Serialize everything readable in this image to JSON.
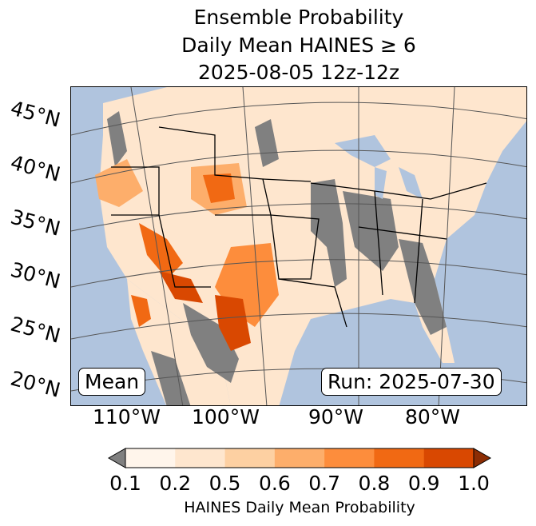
{
  "title": {
    "line1": "Ensemble Probability",
    "line2": "Daily Mean HAINES ≥ 6",
    "line3": "2025-08-05 12z-12z"
  },
  "chart_data": {
    "type": "heatmap",
    "title": "Ensemble Probability Daily Mean HAINES ≥ 6 2025-08-05 12z-12z",
    "lat_labels": [
      "45°N",
      "40°N",
      "35°N",
      "30°N",
      "25°N",
      "20°N"
    ],
    "lon_labels": [
      "110°W",
      "100°W",
      "90°W",
      "80°W"
    ],
    "colorbar": {
      "label": "HAINES Daily Mean Probability",
      "ticks": [
        "0.1",
        "0.2",
        "0.5",
        "0.6",
        "0.7",
        "0.8",
        "0.9",
        "1.0"
      ],
      "colors": [
        "#fff5eb",
        "#fee6ce",
        "#fdd0a2",
        "#fdae6b",
        "#fd8d3c",
        "#f16913",
        "#d94801"
      ],
      "under_color": "#808080",
      "over_color": "#8c2d04",
      "extend": "both"
    },
    "colors": {
      "ocean": "#b0c4de",
      "land_low": "#fee6ce"
    }
  },
  "annotations": {
    "left": "Mean",
    "right": "Run: 2025-07-30"
  }
}
